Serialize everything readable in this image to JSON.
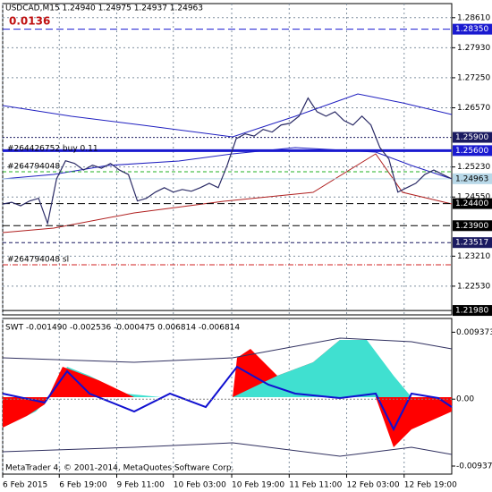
{
  "chart_data": {
    "type": "line",
    "title": "USDCAD,M15  1.24940 1.24975 1.24937 1.24963",
    "annotation": "0.0136",
    "series": [
      {
        "name": "USDCAD",
        "color": "#2b2b66",
        "values": [
          1.2439,
          1.2443,
          1.2435,
          1.2446,
          1.2452,
          1.2395,
          1.2496,
          1.2537,
          1.2531,
          1.2516,
          1.2527,
          1.252,
          1.2531,
          1.2516,
          1.2506,
          1.2446,
          1.2452,
          1.2466,
          1.2476,
          1.2466,
          1.2472,
          1.2468,
          1.2476,
          1.2486,
          1.2476,
          1.2527,
          1.2587,
          1.2598,
          1.2593,
          1.2608,
          1.2602,
          1.2618,
          1.2622,
          1.2638,
          1.2679,
          1.2648,
          1.2638,
          1.2648,
          1.2628,
          1.2618,
          1.2638,
          1.2618,
          1.2567,
          1.2541,
          1.2466,
          1.2476,
          1.2486,
          1.2506,
          1.2516,
          1.2506,
          1.2496
        ]
      }
    ],
    "xlim": [
      0,
      50
    ],
    "xticks": [
      {
        "value": 0,
        "label": "6 Feb 2015"
      },
      {
        "value": 6.3,
        "label": "6 Feb 19:00"
      },
      {
        "value": 12.7,
        "label": "9 Feb 11:00"
      },
      {
        "value": 19,
        "label": "10 Feb 03:00"
      },
      {
        "value": 25.5,
        "label": "10 Feb 19:00"
      },
      {
        "value": 31.9,
        "label": "11 Feb 11:00"
      },
      {
        "value": 38.3,
        "label": "12 Feb 03:00"
      },
      {
        "value": 44.7,
        "label": "12 Feb 19:00"
      }
    ],
    "ylim": [
      1.2188,
      1.2893
    ],
    "yticks": [
      {
        "value": 1.2861,
        "label": "1.28610"
      },
      {
        "value": 1.2793,
        "label": "1.27930"
      },
      {
        "value": 1.2725,
        "label": "1.27250"
      },
      {
        "value": 1.2657,
        "label": "1.26570"
      },
      {
        "value": 1.2523,
        "label": "1.25230"
      },
      {
        "value": 1.2455,
        "label": "1.24550"
      },
      {
        "value": 1.2321,
        "label": "1.23210"
      },
      {
        "value": 1.2253,
        "label": "1.22530"
      }
    ],
    "levels": [
      {
        "value": 1.2835,
        "label": "1.28350",
        "color": "#1a1ad0"
      },
      {
        "value": 1.259,
        "label": "1.25900",
        "color": "#1a1a60"
      },
      {
        "value": 1.256,
        "label": "1.25600",
        "color": "#1a1ad0"
      },
      {
        "value": 1.24963,
        "label": "1.24963",
        "color": "#b8d8e8"
      },
      {
        "value": 1.244,
        "label": "1.24400",
        "color": "#000000"
      },
      {
        "value": 1.239,
        "label": "1.23900",
        "color": "#000000"
      },
      {
        "value": 1.23517,
        "label": "1.23517",
        "color": "#1a1a60"
      },
      {
        "value": 1.2198,
        "label": "1.21980",
        "color": "#000000"
      }
    ],
    "orders": [
      "#264426752 buy 0.11",
      "#264794048",
      "#264794048 sl"
    ],
    "indicator": {
      "title": "SWT -0.001490 -0.002536 -0.000475 0.006814 -0.006814",
      "ylim": [
        -0.0105,
        0.0113
      ],
      "yticks": [
        0.009373,
        {
          "value": 0,
          "label": "0.00"
        },
        -0.009373
      ]
    },
    "footer": "MetaTrader 4, © 2001-2014, MetaQuotes Software Corp.",
    "grid": true
  }
}
